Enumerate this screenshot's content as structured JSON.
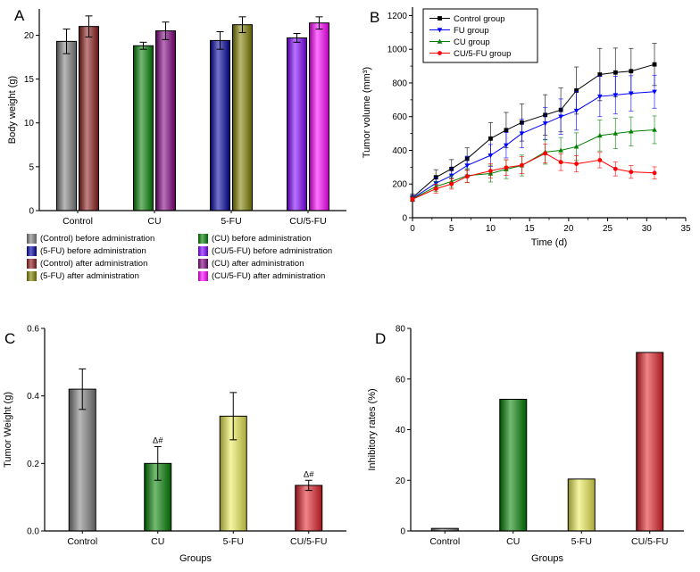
{
  "chart_data": [
    {
      "panel": "A",
      "type": "bar",
      "ylabel": "Body weight (g)",
      "ylim": [
        0,
        23
      ],
      "yticks": [
        "0",
        "5",
        "10",
        "15",
        "20"
      ],
      "categories": [
        "Control",
        "CU",
        "5-FU",
        "CU/5-FU"
      ],
      "bars": [
        {
          "category": "Control",
          "name": "(Control) before administration",
          "value": 19.3,
          "error": 1.4,
          "color": "#808080"
        },
        {
          "category": "Control",
          "name": "(Control) after administration",
          "value": 21.0,
          "error": 1.2,
          "color": "#8B1A1A"
        },
        {
          "category": "CU",
          "name": "(CU) before administration",
          "value": 18.8,
          "error": 0.4,
          "color": "#008000"
        },
        {
          "category": "CU",
          "name": "(CU) after administration",
          "value": 20.5,
          "error": 1.0,
          "color": "#800080"
        },
        {
          "category": "5-FU",
          "name": "(5-FU) before administration",
          "value": 19.4,
          "error": 1.0,
          "color": "#0000A0"
        },
        {
          "category": "5-FU",
          "name": "(5-FU) after administration",
          "value": 21.2,
          "error": 0.9,
          "color": "#808000"
        },
        {
          "category": "CU/5-FU",
          "name": "(CU/5-FU) before administration",
          "value": 19.7,
          "error": 0.5,
          "color": "#8000FF"
        },
        {
          "category": "CU/5-FU",
          "name": "(CU/5-FU) after administration",
          "value": 21.4,
          "error": 0.7,
          "color": "#FF00FF"
        }
      ],
      "legend": [
        {
          "label": "(Control) before administration",
          "color": "#808080"
        },
        {
          "label": "(CU) before administration",
          "color": "#008000"
        },
        {
          "label": "(5-FU) before administration",
          "color": "#0000A0"
        },
        {
          "label": "(CU/5-FU) before administration",
          "color": "#8000FF"
        },
        {
          "label": "(Control) after administration",
          "color": "#8B1A1A"
        },
        {
          "label": "(CU) after administration",
          "color": "#800080"
        },
        {
          "label": "(5-FU) after administration",
          "color": "#808000"
        },
        {
          "label": "(CU/5-FU) after administration",
          "color": "#FF00FF"
        }
      ]
    },
    {
      "panel": "B",
      "type": "line",
      "xlabel": "Time (d)",
      "ylabel": "Tumor volume (mm³)",
      "xlim": [
        0,
        35
      ],
      "ylim": [
        0,
        1250
      ],
      "xticks": [
        "0",
        "5",
        "10",
        "15",
        "20",
        "25",
        "30",
        "35"
      ],
      "yticks": [
        "0",
        "200",
        "400",
        "600",
        "800",
        "1000",
        "1200"
      ],
      "x": [
        0,
        3,
        5,
        7,
        10,
        12,
        14,
        17,
        19,
        21,
        24,
        26,
        28,
        31
      ],
      "legend_position": "top-left",
      "series": [
        {
          "name": "Control group",
          "marker": "square",
          "color": "#000000",
          "values": [
            120,
            240,
            290,
            350,
            470,
            520,
            565,
            610,
            640,
            755,
            850,
            862,
            870,
            910
          ],
          "errors": [
            20,
            45,
            55,
            65,
            95,
            105,
            110,
            120,
            130,
            140,
            155,
            145,
            135,
            125
          ]
        },
        {
          "name": "FU group",
          "marker": "triangle-down",
          "color": "#0000FF",
          "values": [
            115,
            205,
            250,
            310,
            370,
            430,
            500,
            560,
            600,
            635,
            720,
            728,
            738,
            748
          ],
          "errors": [
            18,
            35,
            45,
            55,
            65,
            75,
            85,
            95,
            105,
            115,
            120,
            112,
            105,
            98
          ]
        },
        {
          "name": "CU group",
          "marker": "triangle-up",
          "color": "#008000",
          "values": [
            112,
            185,
            215,
            250,
            262,
            288,
            310,
            390,
            400,
            422,
            488,
            500,
            512,
            522
          ],
          "errors": [
            15,
            30,
            35,
            42,
            50,
            56,
            62,
            72,
            76,
            82,
            92,
            90,
            86,
            82
          ]
        },
        {
          "name": "CU/5-FU group",
          "marker": "circle",
          "color": "#FF0000",
          "values": [
            110,
            172,
            200,
            245,
            278,
            298,
            312,
            382,
            330,
            320,
            342,
            290,
            272,
            266
          ],
          "errors": [
            12,
            26,
            30,
            36,
            42,
            46,
            50,
            56,
            50,
            48,
            46,
            42,
            38,
            36
          ]
        }
      ]
    },
    {
      "panel": "C",
      "type": "bar",
      "xlabel": "Groups",
      "ylabel": "Tumor Weight (g)",
      "ylim": [
        0,
        0.6
      ],
      "yticks": [
        "0.0",
        "0.2",
        "0.4",
        "0.6"
      ],
      "categories": [
        "Control",
        "CU",
        "5-FU",
        "CU/5-FU"
      ],
      "bars": [
        {
          "category": "Control",
          "value": 0.42,
          "error": 0.06,
          "color": "#808080",
          "annotation": ""
        },
        {
          "category": "CU",
          "value": 0.2,
          "error": 0.05,
          "color": "#008000",
          "annotation": "Δ#"
        },
        {
          "category": "5-FU",
          "value": 0.34,
          "error": 0.07,
          "color": "#EDED55",
          "annotation": ""
        },
        {
          "category": "CU/5-FU",
          "value": 0.135,
          "error": 0.015,
          "color": "#E32028",
          "annotation": "Δ#"
        }
      ]
    },
    {
      "panel": "D",
      "type": "bar",
      "xlabel": "Groups",
      "ylabel": "Inhibitory rates (%)",
      "ylim": [
        0,
        80
      ],
      "yticks": [
        "0",
        "20",
        "40",
        "60",
        "80"
      ],
      "categories": [
        "Control",
        "CU",
        "5-FU",
        "CU/5-FU"
      ],
      "bars": [
        {
          "category": "Control",
          "value": 1.0,
          "color": "#808080"
        },
        {
          "category": "CU",
          "value": 52.0,
          "color": "#008000"
        },
        {
          "category": "5-FU",
          "value": 20.5,
          "color": "#EDED55"
        },
        {
          "category": "CU/5-FU",
          "value": 70.5,
          "color": "#E32028"
        }
      ]
    }
  ]
}
